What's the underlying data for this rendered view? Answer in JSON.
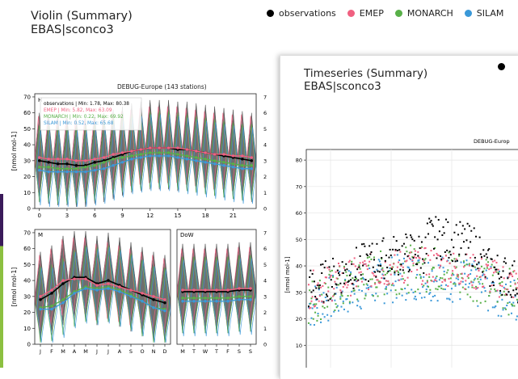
{
  "violin_panel": {
    "title_line1": "Violin (Summary)",
    "title_line2": "EBAS|sconco3",
    "plot_title": "DEBUG-Europe (143 stations)",
    "ylabel": "[nmol mol-1]",
    "legend_box": [
      "observations | Min: 1.78, Max: 80.38",
      "EMEP | Min: 5.82, Max: 63.09",
      "MONARCH | Min: 0.22, Max: 69.92",
      "SILAM | Min: 0.52, Max: 65.68"
    ],
    "hour_panel": {
      "tag": "H",
      "xticks": [
        "0",
        "3",
        "6",
        "9",
        "12",
        "15",
        "18",
        "21"
      ],
      "yticks": [
        "0",
        "10",
        "20",
        "30",
        "40",
        "50",
        "60",
        "70"
      ]
    },
    "month_panel": {
      "tag": "M",
      "xticks": [
        "J",
        "F",
        "M",
        "A",
        "M",
        "J",
        "J",
        "A",
        "S",
        "O",
        "N",
        "D"
      ],
      "yticks": [
        "0",
        "10",
        "20",
        "30",
        "40",
        "50",
        "60",
        "70"
      ]
    },
    "dow_panel": {
      "tag": "DoW",
      "xticks": [
        "M",
        "T",
        "W",
        "T",
        "F",
        "S",
        "S"
      ]
    }
  },
  "legend": [
    {
      "label": "observations",
      "color": "#000000"
    },
    {
      "label": "EMEP",
      "color": "#f06080"
    },
    {
      "label": "MONARCH",
      "color": "#58b048"
    },
    {
      "label": "SILAM",
      "color": "#3a98d8"
    }
  ],
  "timeseries_panel": {
    "title_line1": "Timeseries (Summary)",
    "title_line2": "EBAS|sconco3",
    "plot_title": "DEBUG-Europ",
    "ylabel": "[nmol mol-1]",
    "yticks": [
      "10",
      "20",
      "30",
      "40",
      "50",
      "60",
      "70",
      "80"
    ]
  },
  "chart_data": [
    {
      "type": "violin",
      "panel": "H",
      "x": [
        0,
        1,
        2,
        3,
        4,
        5,
        6,
        7,
        8,
        9,
        10,
        11,
        12,
        13,
        14,
        15,
        16,
        17,
        18,
        19,
        20,
        21,
        22,
        23
      ],
      "ylim": [
        0,
        72
      ],
      "series": [
        {
          "name": "observations",
          "values": [
            30,
            29,
            28,
            28,
            27,
            27,
            29,
            30,
            32,
            34,
            36,
            37,
            38,
            38,
            38,
            37,
            37,
            36,
            35,
            34,
            33,
            32,
            31,
            30
          ]
        },
        {
          "name": "EMEP",
          "values": [
            32,
            31,
            31,
            31,
            30,
            30,
            31,
            32,
            34,
            35,
            36,
            37,
            38,
            38,
            38,
            38,
            37,
            36,
            35,
            34,
            34,
            33,
            33,
            32
          ]
        },
        {
          "name": "MONARCH",
          "values": [
            26,
            26,
            25,
            25,
            25,
            26,
            27,
            29,
            31,
            32,
            33,
            34,
            35,
            35,
            35,
            34,
            33,
            32,
            31,
            30,
            29,
            28,
            27,
            27
          ]
        },
        {
          "name": "SILAM",
          "values": [
            24,
            23,
            23,
            23,
            23,
            23,
            24,
            25,
            27,
            29,
            31,
            32,
            33,
            33,
            33,
            32,
            31,
            30,
            29,
            28,
            27,
            26,
            25,
            25
          ]
        }
      ]
    },
    {
      "type": "violin",
      "panel": "M",
      "categories": [
        "J",
        "F",
        "M",
        "A",
        "M",
        "J",
        "J",
        "A",
        "S",
        "O",
        "N",
        "D"
      ],
      "ylim": [
        0,
        72
      ],
      "series": [
        {
          "name": "observations",
          "values": [
            28,
            32,
            38,
            42,
            42,
            38,
            40,
            37,
            34,
            31,
            28,
            26
          ]
        },
        {
          "name": "EMEP",
          "values": [
            30,
            34,
            40,
            41,
            41,
            37,
            38,
            36,
            34,
            32,
            30,
            28
          ]
        },
        {
          "name": "MONARCH",
          "values": [
            23,
            24,
            28,
            33,
            36,
            35,
            36,
            34,
            31,
            27,
            23,
            22
          ]
        },
        {
          "name": "SILAM",
          "values": [
            22,
            22,
            26,
            32,
            35,
            34,
            35,
            33,
            30,
            27,
            23,
            21
          ]
        }
      ]
    },
    {
      "type": "violin",
      "panel": "DoW",
      "categories": [
        "M",
        "T",
        "W",
        "T",
        "F",
        "S",
        "S"
      ],
      "ylim": [
        0,
        72
      ],
      "series": [
        {
          "name": "observations",
          "values": [
            33,
            33,
            33,
            33,
            33,
            34,
            34
          ]
        },
        {
          "name": "EMEP",
          "values": [
            34,
            34,
            34,
            34,
            34,
            35,
            35
          ]
        },
        {
          "name": "MONARCH",
          "values": [
            29,
            29,
            29,
            29,
            29,
            30,
            30
          ]
        },
        {
          "name": "SILAM",
          "values": [
            27,
            27,
            27,
            27,
            27,
            28,
            28
          ]
        }
      ]
    }
  ]
}
